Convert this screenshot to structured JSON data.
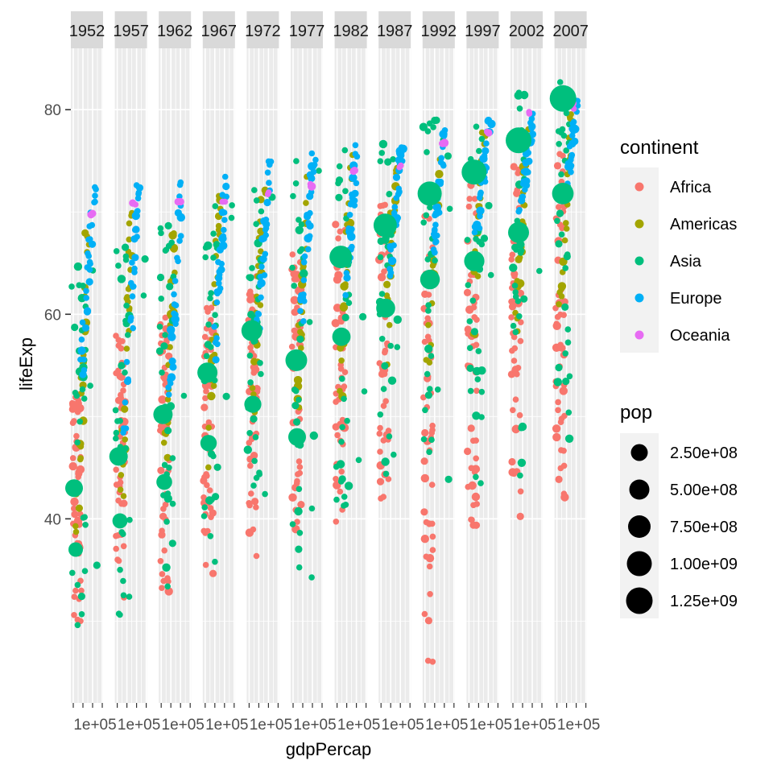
{
  "chart_data": {
    "type": "scatter",
    "facet_by": "year",
    "facets": [
      "1952",
      "1957",
      "1962",
      "1967",
      "1972",
      "1977",
      "1982",
      "1987",
      "1992",
      "1997",
      "2002",
      "2007"
    ],
    "xlabel": "gdpPercap",
    "ylabel": "lifeExp",
    "ylim": [
      22,
      86
    ],
    "y_ticks": [
      40,
      60,
      80
    ],
    "x_tick_text": [
      "1e+05",
      "1e+05",
      "1e+05",
      "1e+05",
      "1e+05",
      "1e+05",
      "1e+05",
      "1e+05",
      "1e+05",
      "1e+05",
      "1e+05",
      "1e+05"
    ],
    "grid": true,
    "legend_position": "right",
    "color_legend": {
      "title": "continent",
      "items": [
        {
          "label": "Africa",
          "color": "#F8766D"
        },
        {
          "label": "Americas",
          "color": "#A3A500"
        },
        {
          "label": "Asia",
          "color": "#00BF7D"
        },
        {
          "label": "Europe",
          "color": "#00B0F6"
        },
        {
          "label": "Oceania",
          "color": "#E76BF3"
        }
      ]
    },
    "size_legend": {
      "title": "pop",
      "items": [
        {
          "label": "2.50e+08",
          "value": 250000000
        },
        {
          "label": "5.00e+08",
          "value": 500000000
        },
        {
          "label": "7.50e+08",
          "value": 750000000
        },
        {
          "label": "1.00e+09",
          "value": 1000000000
        },
        {
          "label": "1.25e+09",
          "value": 1250000000
        }
      ]
    },
    "le_ranges": {
      "1952": {
        "Africa": [
          30,
          53
        ],
        "Americas": [
          37,
          69
        ],
        "Asia": [
          29,
          65
        ],
        "Europe": [
          54,
          73
        ],
        "Oceania": [
          69,
          70
        ]
      },
      "1957": {
        "Africa": [
          31,
          58
        ],
        "Americas": [
          40,
          70
        ],
        "Asia": [
          30,
          68
        ],
        "Europe": [
          48,
          73
        ],
        "Oceania": [
          70,
          71
        ]
      },
      "1962": {
        "Africa": [
          32,
          60
        ],
        "Americas": [
          43,
          71
        ],
        "Asia": [
          32,
          69
        ],
        "Europe": [
          52,
          73
        ],
        "Oceania": [
          71,
          71
        ]
      },
      "1967": {
        "Africa": [
          34,
          61
        ],
        "Americas": [
          45,
          72
        ],
        "Asia": [
          34,
          71
        ],
        "Europe": [
          54,
          74
        ],
        "Oceania": [
          71,
          71
        ]
      },
      "1972": {
        "Africa": [
          35,
          64
        ],
        "Americas": [
          47,
          73
        ],
        "Asia": [
          36,
          73
        ],
        "Europe": [
          57,
          75
        ],
        "Oceania": [
          71,
          72
        ]
      },
      "1977": {
        "Africa": [
          37,
          66
        ],
        "Americas": [
          49,
          74
        ],
        "Asia": [
          31,
          75
        ],
        "Europe": [
          59,
          76
        ],
        "Oceania": [
          72,
          73
        ]
      },
      "1982": {
        "Africa": [
          38,
          69
        ],
        "Americas": [
          51,
          76
        ],
        "Asia": [
          39,
          77
        ],
        "Europe": [
          61,
          77
        ],
        "Oceania": [
          73,
          75
        ]
      },
      "1987": {
        "Africa": [
          40,
          71
        ],
        "Americas": [
          53,
          76
        ],
        "Asia": [
          40,
          78
        ],
        "Europe": [
          63,
          77
        ],
        "Oceania": [
          74,
          76
        ]
      },
      "1992": {
        "Africa": [
          24,
          72
        ],
        "Americas": [
          55,
          77
        ],
        "Asia": [
          41,
          79
        ],
        "Europe": [
          66,
          78
        ],
        "Oceania": [
          76,
          77
        ]
      },
      "1997": {
        "Africa": [
          36,
          74
        ],
        "Americas": [
          56,
          78
        ],
        "Asia": [
          41,
          80
        ],
        "Europe": [
          68,
          79
        ],
        "Oceania": [
          77,
          78
        ]
      },
      "2002": {
        "Africa": [
          39,
          75
        ],
        "Americas": [
          58,
          79
        ],
        "Asia": [
          42,
          82
        ],
        "Europe": [
          70,
          80
        ],
        "Oceania": [
          79,
          80
        ]
      },
      "2007": {
        "Africa": [
          40,
          76
        ],
        "Americas": [
          60,
          80
        ],
        "Asia": [
          44,
          83
        ],
        "Europe": [
          71,
          81
        ],
        "Oceania": [
          80,
          81
        ]
      }
    }
  }
}
